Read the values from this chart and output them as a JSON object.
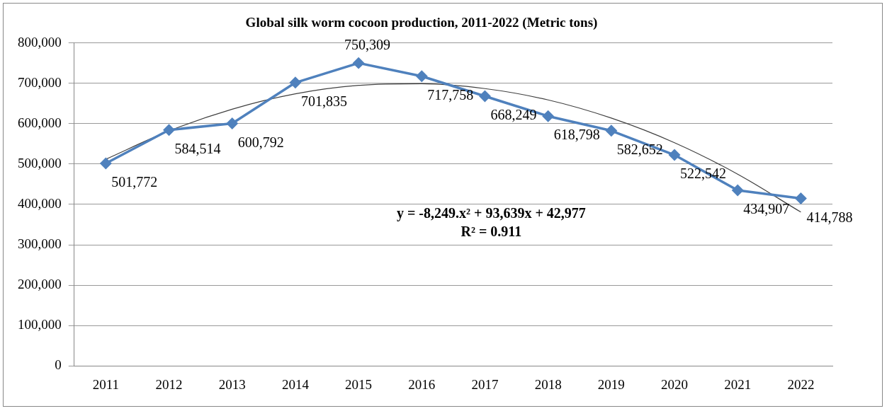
{
  "chart_data": {
    "type": "line",
    "title": "Global silk worm cocoon production, 2011-2022 (Metric tons)",
    "categories": [
      "2011",
      "2012",
      "2013",
      "2014",
      "2015",
      "2016",
      "2017",
      "2018",
      "2019",
      "2020",
      "2021",
      "2022"
    ],
    "series": [
      {
        "color": "#4f81bd",
        "values": [
          501772,
          584514,
          600792,
          701835,
          750309,
          717758,
          668249,
          618798,
          582652,
          522542,
          434907,
          414788
        ],
        "value_labels": [
          "501,772",
          "584,514",
          "600,792",
          "701,835",
          "750,309",
          "717,758",
          "668,249",
          "618,798",
          "582,652",
          "522,542",
          "434,907",
          "414,788"
        ],
        "marker": "diamond"
      },
      {
        "type": "line",
        "color": "#404040",
        "values": [
          512000,
          582000,
          636000,
          674000,
          695000,
          699000,
          687000,
          659000,
          614000,
          553000,
          475000,
          381000
        ],
        "marker": "none"
      }
    ],
    "ylim": [
      0,
      800000
    ],
    "yticks": [
      {
        "value": 0,
        "label": "0"
      },
      {
        "value": 100000,
        "label": "100,000"
      },
      {
        "value": 200000,
        "label": "200,000"
      },
      {
        "value": 300000,
        "label": "300,000"
      },
      {
        "value": 400000,
        "label": "400,000"
      },
      {
        "value": 500000,
        "label": "500,000"
      },
      {
        "value": 600000,
        "label": "600,000"
      },
      {
        "value": 700000,
        "label": "700,000"
      },
      {
        "value": 800000,
        "label": "800,000"
      }
    ],
    "grid": "y",
    "legend": false,
    "annotations": [
      "y = -8,249.x² + 93,639x + 42,977",
      "R² = 0.911"
    ]
  }
}
